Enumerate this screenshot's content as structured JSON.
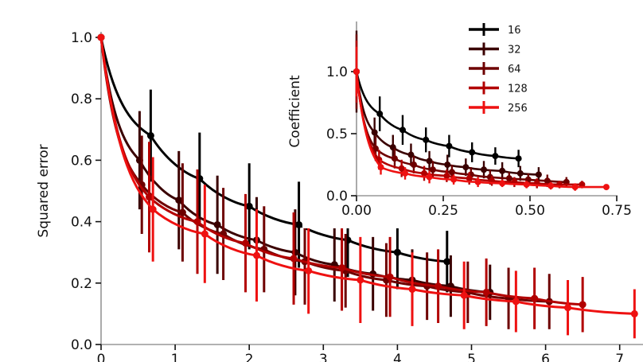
{
  "chart_data": [
    {
      "type": "line",
      "name": "main",
      "title": "",
      "xlabel": "",
      "ylabel": "Squared error",
      "xlim": [
        0,
        7.3
      ],
      "ylim": [
        0,
        1.0
      ],
      "xticks": [
        "0",
        "1",
        "2",
        "3",
        "4",
        "5",
        "6",
        "7"
      ],
      "yticks": [
        "0.0",
        "0.2",
        "0.4",
        "0.6",
        "0.8",
        "1.0"
      ],
      "grid": false,
      "series": [
        {
          "name": "16",
          "color": "#000000",
          "x": [
            0,
            0.67,
            1.33,
            2.0,
            2.67,
            3.33,
            4.0,
            4.67
          ],
          "y": [
            1.0,
            0.68,
            0.54,
            0.45,
            0.39,
            0.34,
            0.3,
            0.27
          ],
          "err": [
            0,
            0.15,
            0.15,
            0.14,
            0.14,
            0.12,
            0.12,
            0.1
          ]
        },
        {
          "name": "32",
          "color": "#3a0000",
          "x": [
            0,
            0.52,
            1.05,
            1.57,
            2.1,
            2.62,
            3.15,
            3.67,
            4.2,
            4.72,
            5.25
          ],
          "y": [
            1.0,
            0.6,
            0.47,
            0.39,
            0.34,
            0.3,
            0.26,
            0.23,
            0.21,
            0.19,
            0.17
          ],
          "err": [
            0,
            0.16,
            0.16,
            0.16,
            0.14,
            0.14,
            0.12,
            0.12,
            0.1,
            0.1,
            0.09
          ]
        },
        {
          "name": "64",
          "color": "#6e0000",
          "x": [
            0,
            0.55,
            1.1,
            1.65,
            2.2,
            2.75,
            3.3,
            3.85,
            4.4,
            4.95,
            5.5,
            6.05
          ],
          "y": [
            1.0,
            0.52,
            0.43,
            0.36,
            0.31,
            0.27,
            0.24,
            0.21,
            0.19,
            0.17,
            0.15,
            0.14
          ],
          "err": [
            0,
            0.16,
            0.16,
            0.15,
            0.14,
            0.14,
            0.12,
            0.12,
            0.11,
            0.1,
            0.1,
            0.09
          ]
        },
        {
          "name": "128",
          "color": "#b20000",
          "x": [
            0,
            0.65,
            1.3,
            1.95,
            2.6,
            3.25,
            3.9,
            4.55,
            5.2,
            5.85,
            6.5
          ],
          "y": [
            1.0,
            0.48,
            0.4,
            0.33,
            0.28,
            0.25,
            0.22,
            0.19,
            0.17,
            0.15,
            0.13
          ],
          "err": [
            0,
            0.18,
            0.17,
            0.16,
            0.15,
            0.14,
            0.13,
            0.12,
            0.11,
            0.1,
            0.09
          ]
        },
        {
          "name": "256",
          "color": "#ee1111",
          "x": [
            0,
            0.7,
            1.4,
            2.1,
            2.8,
            3.5,
            4.2,
            4.9,
            5.6,
            6.3,
            7.2
          ],
          "y": [
            1.0,
            0.44,
            0.36,
            0.29,
            0.24,
            0.21,
            0.18,
            0.16,
            0.14,
            0.12,
            0.1
          ],
          "err": [
            0,
            0.17,
            0.16,
            0.15,
            0.14,
            0.14,
            0.12,
            0.11,
            0.1,
            0.09,
            0.08
          ]
        }
      ]
    },
    {
      "type": "line",
      "name": "inset",
      "title": "",
      "xlabel": "",
      "ylabel": "Coefficient",
      "xlim": [
        0,
        0.77
      ],
      "ylim": [
        0,
        1.35
      ],
      "xticks": [
        "0.00",
        "0.25",
        "0.50",
        "0.75"
      ],
      "yticks": [
        "0.0",
        "0.5",
        "1.0"
      ],
      "grid": false,
      "legend": {
        "placement": "top-right",
        "entries": [
          "16",
          "32",
          "64",
          "128",
          "256"
        ]
      },
      "series": [
        {
          "name": "16",
          "color": "#000000",
          "x": [
            0,
            0.067,
            0.133,
            0.2,
            0.267,
            0.333,
            0.4,
            0.467
          ],
          "y": [
            1.0,
            0.66,
            0.53,
            0.45,
            0.4,
            0.35,
            0.32,
            0.3
          ],
          "err": [
            0,
            0.14,
            0.12,
            0.1,
            0.09,
            0.08,
            0.07,
            0.07
          ]
        },
        {
          "name": "32",
          "color": "#3a0000",
          "x": [
            0,
            0.052,
            0.105,
            0.157,
            0.21,
            0.262,
            0.315,
            0.367,
            0.42,
            0.472,
            0.525
          ],
          "y": [
            1.0,
            0.51,
            0.39,
            0.33,
            0.28,
            0.25,
            0.23,
            0.21,
            0.2,
            0.18,
            0.17
          ],
          "err": [
            0.33,
            0.12,
            0.1,
            0.09,
            0.08,
            0.08,
            0.07,
            0.07,
            0.07,
            0.06,
            0.06
          ]
        },
        {
          "name": "64",
          "color": "#6e0000",
          "x": [
            0,
            0.055,
            0.11,
            0.165,
            0.22,
            0.275,
            0.33,
            0.385,
            0.44,
            0.495,
            0.55,
            0.605
          ],
          "y": [
            1.0,
            0.38,
            0.3,
            0.25,
            0.21,
            0.19,
            0.17,
            0.15,
            0.14,
            0.13,
            0.12,
            0.11
          ],
          "err": [
            0.3,
            0.1,
            0.08,
            0.07,
            0.07,
            0.06,
            0.06,
            0.06,
            0.05,
            0.05,
            0.05,
            0.04
          ]
        },
        {
          "name": "128",
          "color": "#b20000",
          "x": [
            0,
            0.065,
            0.13,
            0.195,
            0.26,
            0.325,
            0.39,
            0.455,
            0.52,
            0.585,
            0.65
          ],
          "y": [
            1.0,
            0.29,
            0.22,
            0.18,
            0.16,
            0.14,
            0.12,
            0.11,
            0.1,
            0.09,
            0.09
          ],
          "err": [
            0.25,
            0.08,
            0.07,
            0.06,
            0.05,
            0.05,
            0.04,
            0.04,
            0.04,
            0.03,
            0.03
          ]
        },
        {
          "name": "256",
          "color": "#ee1111",
          "x": [
            0,
            0.07,
            0.14,
            0.21,
            0.28,
            0.35,
            0.42,
            0.49,
            0.56,
            0.63,
            0.72
          ],
          "y": [
            1.0,
            0.23,
            0.18,
            0.15,
            0.13,
            0.11,
            0.1,
            0.09,
            0.08,
            0.07,
            0.07
          ],
          "err": [
            0.2,
            0.06,
            0.05,
            0.05,
            0.04,
            0.04,
            0.03,
            0.03,
            0.03,
            0.03,
            0.02
          ]
        }
      ]
    }
  ]
}
